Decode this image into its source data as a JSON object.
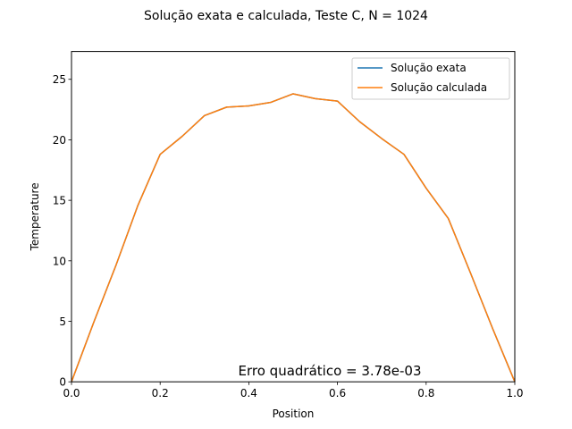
{
  "chart_data": {
    "type": "line",
    "title": "Solução exata e calculada, Teste C, N = 1024",
    "xlabel": "Position",
    "ylabel": "Temperature",
    "xlim": [
      0.0,
      1.0
    ],
    "ylim": [
      0,
      27.3
    ],
    "xticks": [
      0.0,
      0.2,
      0.4,
      0.6,
      0.8,
      1.0
    ],
    "xtick_labels": [
      "0.0",
      "0.2",
      "0.4",
      "0.6",
      "0.8",
      "1.0"
    ],
    "yticks": [
      0,
      5,
      10,
      15,
      20,
      25
    ],
    "ytick_labels": [
      "0",
      "5",
      "10",
      "15",
      "20",
      "25"
    ],
    "grid": false,
    "legend_position": "top-right",
    "annotation": "Erro quadrático = 3.78e-03",
    "series": [
      {
        "name": "Solução exata",
        "color": "#1f77b4",
        "x": [
          0.0,
          0.05,
          0.1,
          0.15,
          0.2,
          0.25,
          0.3,
          0.35,
          0.4,
          0.45,
          0.5,
          0.55,
          0.6,
          0.65,
          0.7,
          0.75,
          0.8,
          0.85,
          0.9,
          0.95,
          1.0
        ],
        "y": [
          0.0,
          4.9,
          9.6,
          14.6,
          18.8,
          20.3,
          22.0,
          22.7,
          22.8,
          23.1,
          23.8,
          23.4,
          23.2,
          21.5,
          20.1,
          18.8,
          16.0,
          13.5,
          9.0,
          4.4,
          0.0
        ]
      },
      {
        "name": "Solução calculada",
        "color": "#ff7f0e",
        "x": [
          0.0,
          0.05,
          0.1,
          0.15,
          0.2,
          0.25,
          0.3,
          0.35,
          0.4,
          0.45,
          0.5,
          0.55,
          0.6,
          0.65,
          0.7,
          0.75,
          0.8,
          0.85,
          0.9,
          0.95,
          1.0
        ],
        "y": [
          0.0,
          4.9,
          9.6,
          14.6,
          18.8,
          20.3,
          22.0,
          22.7,
          22.8,
          23.1,
          23.8,
          23.4,
          23.2,
          21.5,
          20.1,
          18.8,
          16.0,
          13.5,
          9.0,
          4.4,
          0.0
        ]
      }
    ]
  }
}
